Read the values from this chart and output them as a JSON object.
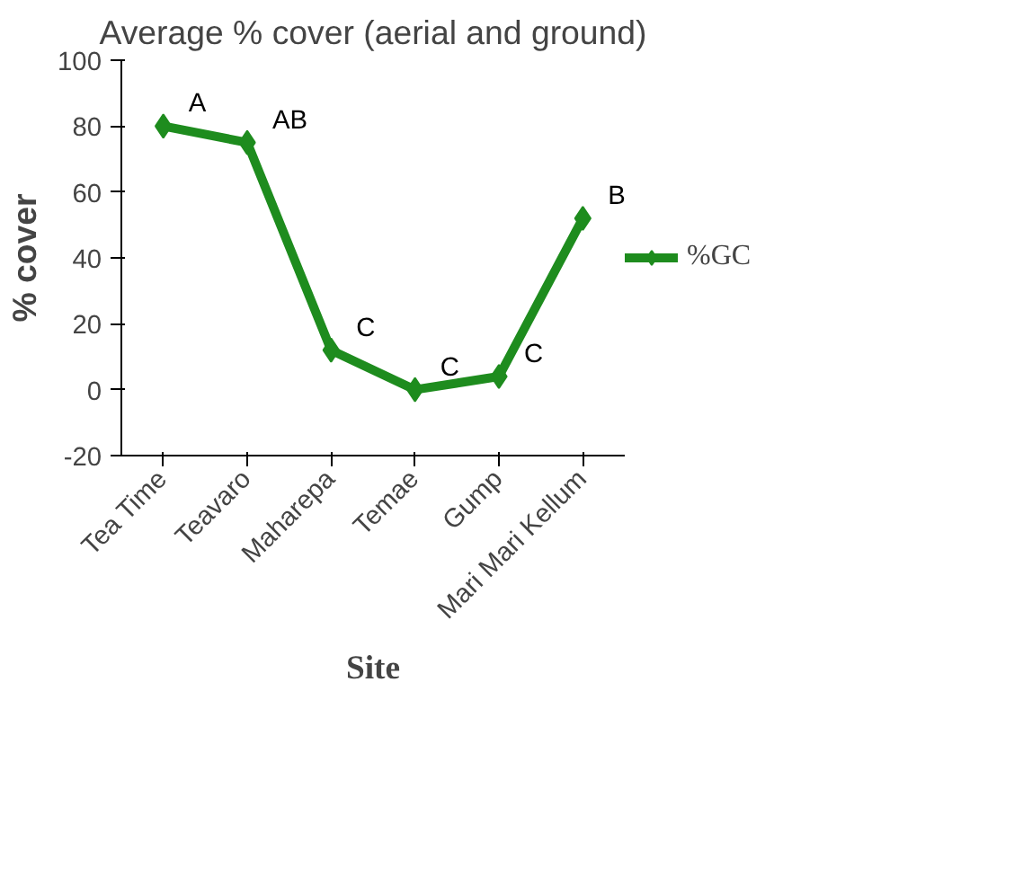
{
  "chart_data": {
    "type": "line",
    "title": "Average % cover (aerial and ground)",
    "xlabel": "Site",
    "ylabel": "% cover",
    "categories": [
      "Tea Time",
      "Teavaro",
      "Maharepa",
      "Temae",
      "Gump",
      "Mari Mari Kellum"
    ],
    "series": [
      {
        "name": "%GC",
        "color": "#1e8c1e",
        "values": [
          80,
          75,
          12,
          0,
          4,
          52
        ]
      }
    ],
    "ylim": [
      -20,
      100
    ],
    "yticks": [
      -20,
      0,
      20,
      40,
      60,
      80,
      100
    ],
    "grid": false,
    "legend": "right",
    "marker": "diamond",
    "line_style": "solid",
    "annotations": [
      {
        "text": "A",
        "x": "Tea Time",
        "y": 80
      },
      {
        "text": "AB",
        "x": "Teavaro",
        "y": 75
      },
      {
        "text": "C",
        "x": "Maharepa",
        "y": 12
      },
      {
        "text": "C",
        "x": "Temae",
        "y": 0
      },
      {
        "text": "C",
        "x": "Gump",
        "y": 4
      },
      {
        "text": "B",
        "x": "Mari Mari Kellum",
        "y": 52
      }
    ]
  }
}
